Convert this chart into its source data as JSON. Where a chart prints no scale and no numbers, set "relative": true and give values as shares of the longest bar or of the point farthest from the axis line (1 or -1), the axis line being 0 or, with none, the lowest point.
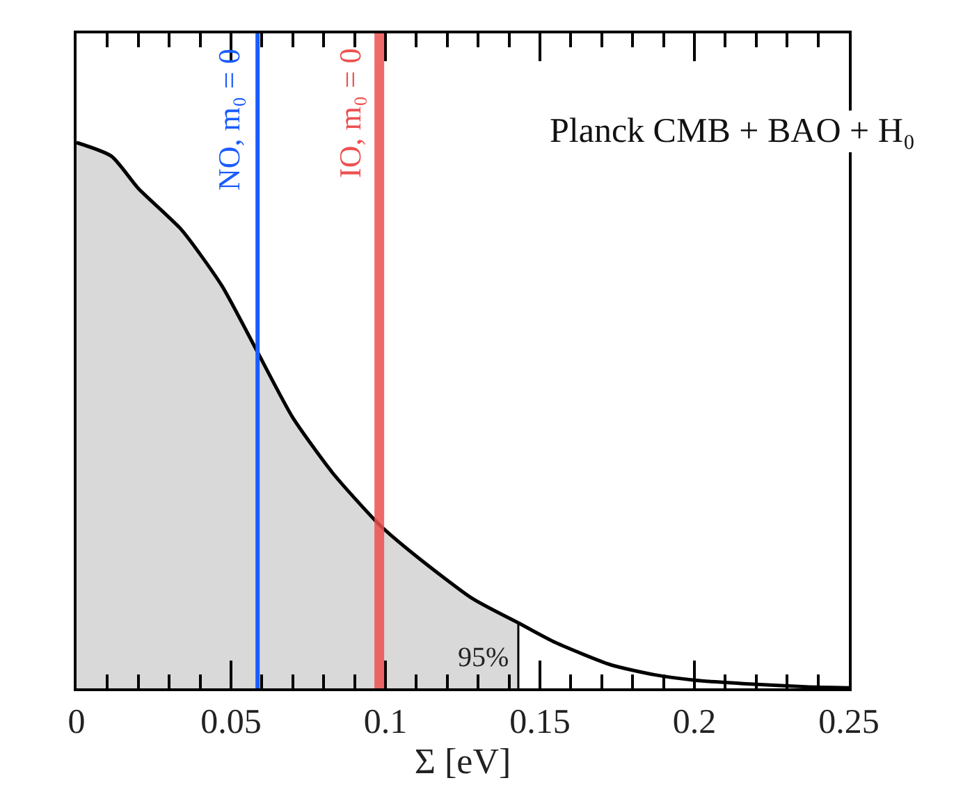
{
  "chart_data": {
    "type": "area",
    "relative": true,
    "xlabel": "Σ [eV]",
    "annotations": [
      "Planck CMB + BAO + H₀",
      "95%"
    ],
    "series": [
      {
        "color": "#000000",
        "x": [
          0,
          0.0113,
          0.02,
          0.034,
          0.047,
          0.0586,
          0.07,
          0.083,
          0.098,
          0.11,
          0.128,
          0.143
        ],
        "values": [
          1.0,
          0.975,
          0.916,
          0.84,
          0.738,
          0.616,
          0.496,
          0.394,
          0.3,
          0.242,
          0.165,
          0.12
        ]
      },
      {
        "type": "line",
        "color": "#000000",
        "x": [
          0.143,
          0.155,
          0.173,
          0.187,
          0.2,
          0.218,
          0.236,
          0.25
        ],
        "values": [
          0.12,
          0.084,
          0.043,
          0.025,
          0.015,
          0.008,
          0.003,
          0.001
        ]
      }
    ],
    "ref_lines": [
      {
        "axis": "x",
        "value": 0.0586,
        "label": "NO, m₀ = 0",
        "color": "#1a5cff"
      },
      {
        "axis": "x",
        "value": 0.098,
        "label": "IO, m₀ = 0",
        "color": "#ee5050"
      }
    ],
    "xlim": [
      0,
      0.25
    ],
    "xticks": [
      0,
      {
        "value": 0.01,
        "label": null
      },
      {
        "value": 0.02,
        "label": null
      },
      {
        "value": 0.03,
        "label": null
      },
      {
        "value": 0.04,
        "label": null
      },
      0.05,
      {
        "value": 0.06,
        "label": null
      },
      {
        "value": 0.07,
        "label": null
      },
      {
        "value": 0.08,
        "label": null
      },
      {
        "value": 0.09,
        "label": null
      },
      0.1,
      {
        "value": 0.11,
        "label": null
      },
      {
        "value": 0.12,
        "label": null
      },
      {
        "value": 0.13,
        "label": null
      },
      {
        "value": 0.14,
        "label": null
      },
      0.15,
      {
        "value": 0.16,
        "label": null
      },
      {
        "value": 0.17,
        "label": null
      },
      {
        "value": 0.18,
        "label": null
      },
      {
        "value": 0.19,
        "label": null
      },
      0.2,
      {
        "value": 0.21,
        "label": null
      },
      {
        "value": 0.22,
        "label": null
      },
      {
        "value": 0.23,
        "label": null
      },
      {
        "value": 0.24,
        "label": null
      },
      0.25
    ]
  }
}
